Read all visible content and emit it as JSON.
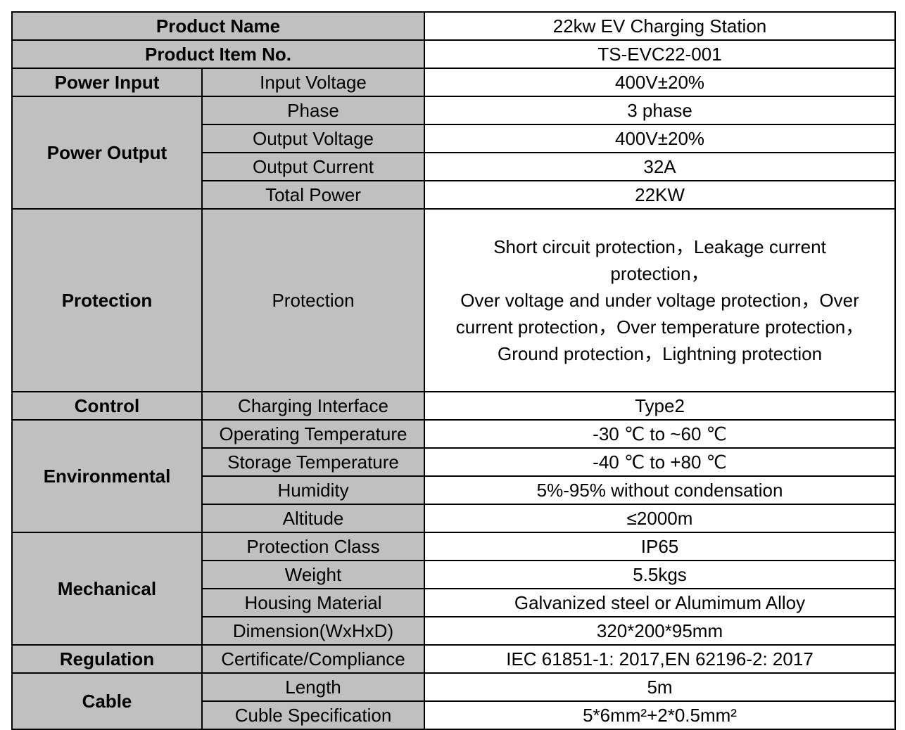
{
  "colors": {
    "header_bg": "#c0c0c0",
    "value_bg": "#ffffff",
    "border": "#000000"
  },
  "table": {
    "product_name": {
      "label": "Product Name",
      "value": "22kw EV Charging Station"
    },
    "product_item": {
      "label": "Product Item No.",
      "value": "TS-EVC22-001"
    },
    "power_input": {
      "label": "Power Input",
      "rows": [
        {
          "label": "Input Voltage",
          "value": "400V±20%"
        }
      ]
    },
    "power_output": {
      "label": "Power Output",
      "rows": [
        {
          "label": "Phase",
          "value": "3 phase"
        },
        {
          "label": "Output Voltage",
          "value": "400V±20%"
        },
        {
          "label": "Output Current",
          "value": "32A"
        },
        {
          "label": "Total Power",
          "value": "22KW"
        }
      ]
    },
    "protection": {
      "label": "Protection",
      "sub_label": "Protection",
      "lines": [
        "Short circuit protection，Leakage current",
        "protection，",
        "Over voltage and under voltage protection，Over",
        "current protection，Over temperature protection，",
        "Ground protection，Lightning protection"
      ]
    },
    "control": {
      "label": "Control",
      "rows": [
        {
          "label": "Charging Interface",
          "value": "Type2"
        }
      ]
    },
    "environmental": {
      "label": "Environmental",
      "rows": [
        {
          "label": "Operating Temperature",
          "value": "-30 ℃ to ~60 ℃"
        },
        {
          "label": "Storage Temperature",
          "value": "-40 ℃ to +80 ℃"
        },
        {
          "label": "Humidity",
          "value": "5%-95% without condensation"
        },
        {
          "label": "Altitude",
          "value": "≤2000m"
        }
      ]
    },
    "mechanical": {
      "label": "Mechanical",
      "rows": [
        {
          "label": "Protection Class",
          "value": "IP65"
        },
        {
          "label": "Weight",
          "value": "5.5kgs"
        },
        {
          "label": "Housing Material",
          "value": "Galvanized steel or Alumimum Alloy"
        },
        {
          "label": "Dimension(WxHxD)",
          "value": "320*200*95mm"
        }
      ]
    },
    "regulation": {
      "label": "Regulation",
      "rows": [
        {
          "label": "Certificate/Compliance",
          "value": "IEC 61851-1: 2017,EN 62196-2: 2017"
        }
      ]
    },
    "cable": {
      "label": "Cable",
      "rows": [
        {
          "label": "Length",
          "value": "5m"
        },
        {
          "label": "Cuble Specification",
          "value": "5*6mm²+2*0.5mm²"
        }
      ]
    }
  }
}
